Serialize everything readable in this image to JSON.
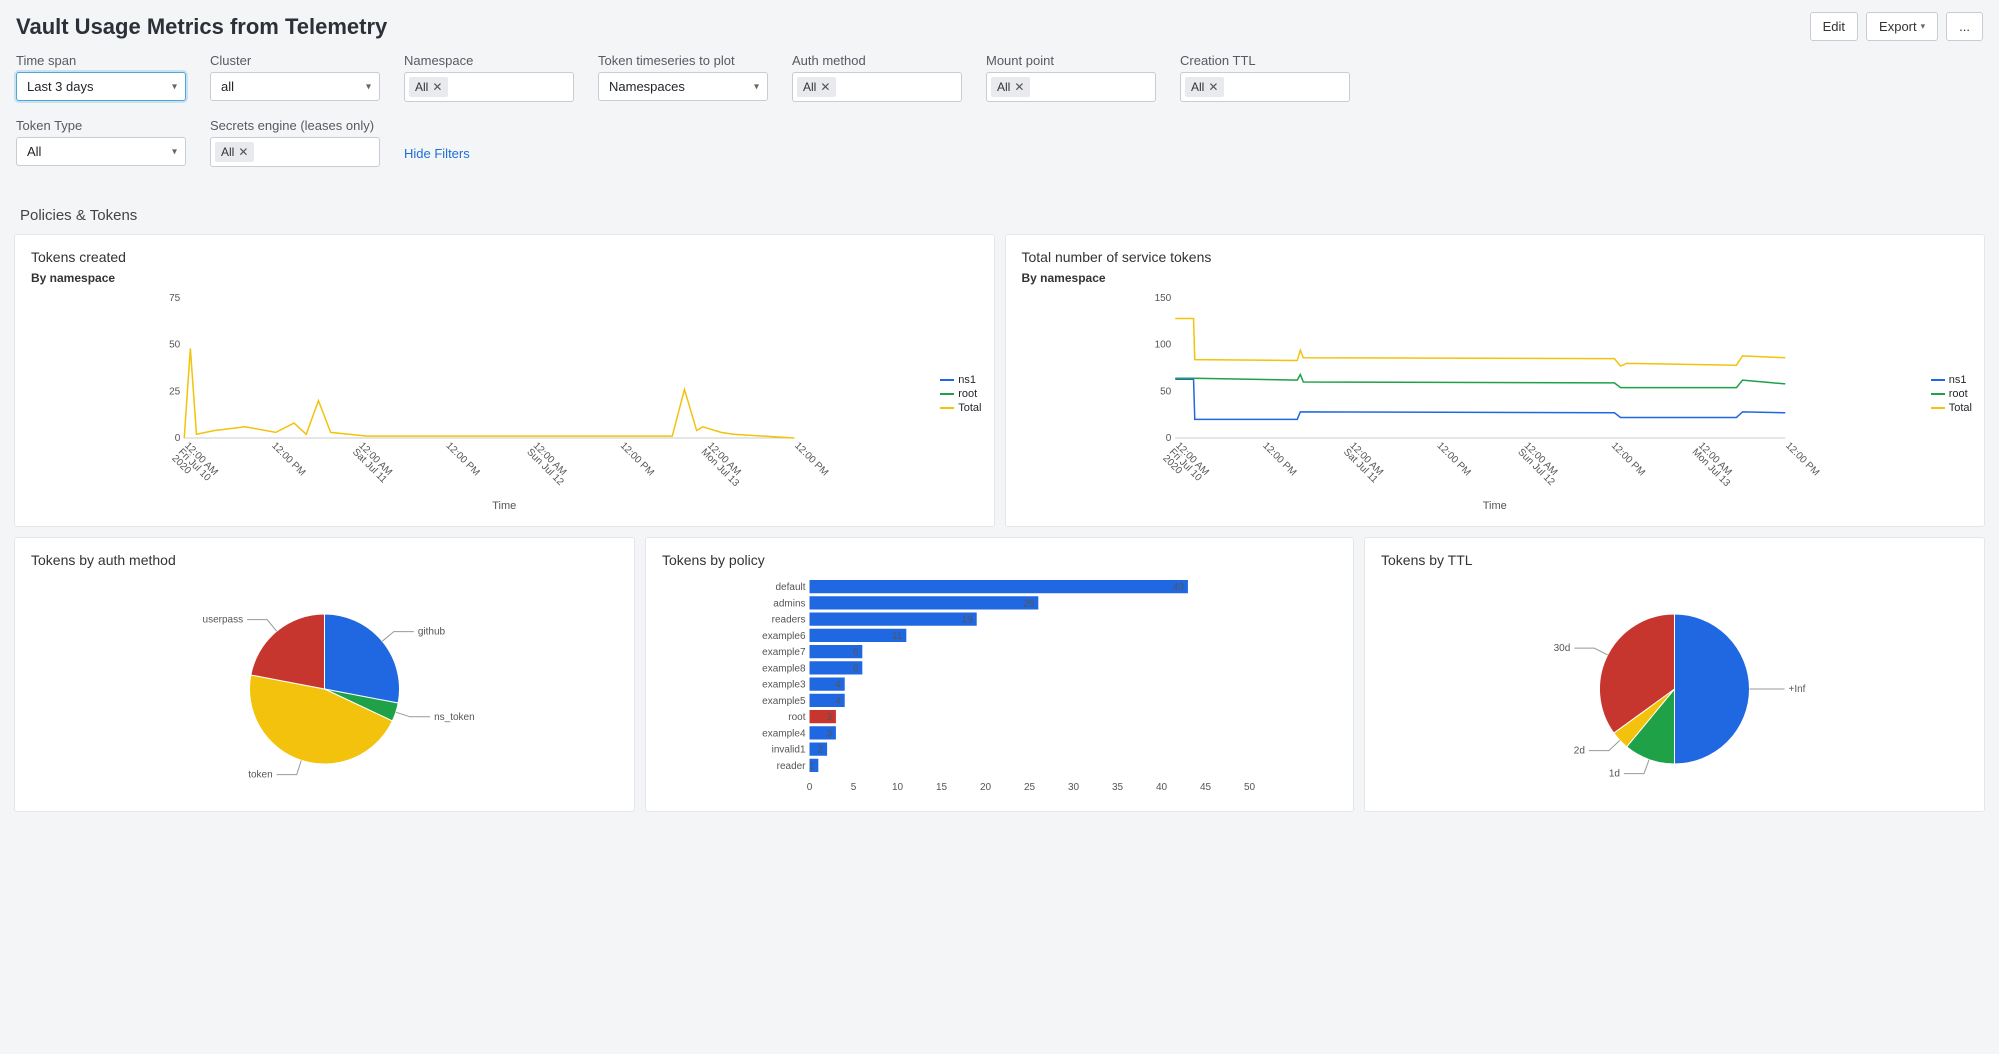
{
  "header": {
    "title": "Vault Usage Metrics from Telemetry",
    "edit": "Edit",
    "export": "Export",
    "more": "..."
  },
  "filters": {
    "timespan": {
      "label": "Time span",
      "value": "Last 3 days"
    },
    "cluster": {
      "label": "Cluster",
      "value": "all"
    },
    "namespace": {
      "label": "Namespace",
      "chip": "All"
    },
    "timeseries": {
      "label": "Token timeseries to plot",
      "value": "Namespaces"
    },
    "auth_method": {
      "label": "Auth method",
      "chip": "All"
    },
    "mount_point": {
      "label": "Mount point",
      "chip": "All"
    },
    "creation_ttl": {
      "label": "Creation TTL",
      "chip": "All"
    },
    "token_type": {
      "label": "Token Type",
      "value": "All"
    },
    "secrets_engine": {
      "label": "Secrets engine (leases only)",
      "chip": "All"
    },
    "hide_filters": "Hide Filters"
  },
  "section": {
    "policies_tokens": "Policies & Tokens"
  },
  "colors": {
    "blue": "#2067e2",
    "green": "#1fa148",
    "yellow": "#f2c20c",
    "red": "#c7362e",
    "grid": "#e6e8ec",
    "axis_text": "#666"
  },
  "chart1": {
    "title": "Tokens created",
    "subtitle": "By namespace",
    "y_ticks": [
      0,
      25,
      50,
      75
    ],
    "ymax": 75,
    "x_ticks": [
      "12:00 AM\nFri Jul 10\n2020",
      "12:00 PM",
      "12:00 AM\nSat Jul 11",
      "12:00 PM",
      "12:00 AM\nSun Jul 12",
      "12:00 PM",
      "12:00 AM\nMon Jul 13",
      "12:00 PM"
    ],
    "axis_label": "Time",
    "legend": [
      "ns1",
      "root",
      "Total"
    ],
    "legend_colors": [
      "#2067e2",
      "#1fa148",
      "#f2c20c"
    ],
    "total_series": [
      [
        0,
        0
      ],
      [
        1,
        48
      ],
      [
        2,
        2
      ],
      [
        5,
        4
      ],
      [
        10,
        6
      ],
      [
        15,
        3
      ],
      [
        18,
        8
      ],
      [
        20,
        2
      ],
      [
        22,
        20
      ],
      [
        24,
        3
      ],
      [
        30,
        1
      ],
      [
        40,
        1
      ],
      [
        50,
        1
      ],
      [
        60,
        1
      ],
      [
        70,
        1
      ],
      [
        80,
        1
      ],
      [
        82,
        26
      ],
      [
        84,
        4
      ],
      [
        85,
        6
      ],
      [
        88,
        3
      ],
      [
        90,
        2
      ],
      [
        100,
        0
      ]
    ]
  },
  "chart2": {
    "title": "Total number of service tokens",
    "subtitle": "By namespace",
    "y_ticks": [
      0,
      50,
      100,
      150
    ],
    "ymax": 150,
    "x_ticks": [
      "12:00 AM\nFri Jul 10\n2020",
      "12:00 PM",
      "12:00 AM\nSat Jul 11",
      "12:00 PM",
      "12:00 AM\nSun Jul 12",
      "12:00 PM",
      "12:00 AM\nMon Jul 13",
      "12:00 PM"
    ],
    "axis_label": "Time",
    "legend": [
      "ns1",
      "root",
      "Total"
    ],
    "legend_colors": [
      "#2067e2",
      "#1fa148",
      "#f2c20c"
    ],
    "ns1": [
      [
        0,
        63
      ],
      [
        3,
        63
      ],
      [
        3.2,
        20
      ],
      [
        20,
        20
      ],
      [
        20.5,
        28
      ],
      [
        72,
        27
      ],
      [
        73,
        22
      ],
      [
        92,
        22
      ],
      [
        93,
        28
      ],
      [
        100,
        27
      ]
    ],
    "root": [
      [
        0,
        64
      ],
      [
        3,
        64
      ],
      [
        20,
        62
      ],
      [
        20.5,
        68
      ],
      [
        21,
        60
      ],
      [
        72,
        59
      ],
      [
        73,
        54
      ],
      [
        92,
        54
      ],
      [
        93,
        62
      ],
      [
        100,
        58
      ]
    ],
    "total": [
      [
        0,
        128
      ],
      [
        3,
        128
      ],
      [
        3.2,
        84
      ],
      [
        20,
        83
      ],
      [
        20.5,
        94
      ],
      [
        21,
        86
      ],
      [
        72,
        85
      ],
      [
        73,
        77
      ],
      [
        74,
        80
      ],
      [
        92,
        78
      ],
      [
        93,
        88
      ],
      [
        100,
        86
      ]
    ]
  },
  "chart3": {
    "title": "Tokens by auth method",
    "slices": [
      {
        "label": "github",
        "value": 28,
        "color": "#2067e2"
      },
      {
        "label": "ns_token",
        "value": 4,
        "color": "#1fa148"
      },
      {
        "label": "token",
        "value": 46,
        "color": "#f2c20c"
      },
      {
        "label": "userpass",
        "value": 22,
        "color": "#c7362e"
      }
    ]
  },
  "chart4": {
    "title": "Tokens by policy",
    "xmax": 50,
    "x_ticks": [
      0,
      5,
      10,
      15,
      20,
      25,
      30,
      35,
      40,
      45,
      50
    ],
    "bars": [
      {
        "label": "default",
        "value": 43,
        "color": "#2067e2"
      },
      {
        "label": "admins",
        "value": 26,
        "color": "#2067e2"
      },
      {
        "label": "readers",
        "value": 19,
        "color": "#2067e2"
      },
      {
        "label": "example6",
        "value": 11,
        "color": "#2067e2"
      },
      {
        "label": "example7",
        "value": 6,
        "color": "#2067e2"
      },
      {
        "label": "example8",
        "value": 6,
        "color": "#2067e2"
      },
      {
        "label": "example3",
        "value": 4,
        "color": "#2067e2"
      },
      {
        "label": "example5",
        "value": 4,
        "color": "#2067e2"
      },
      {
        "label": "root",
        "value": 3,
        "color": "#c7362e"
      },
      {
        "label": "example4",
        "value": 3,
        "color": "#2067e2"
      },
      {
        "label": "invalid1",
        "value": 2,
        "color": "#2067e2"
      },
      {
        "label": "reader",
        "value": 1,
        "color": "#2067e2"
      }
    ]
  },
  "chart5": {
    "title": "Tokens by TTL",
    "slices": [
      {
        "label": "+Inf",
        "value": 50,
        "color": "#2067e2"
      },
      {
        "label": "1d",
        "value": 11,
        "color": "#1fa148"
      },
      {
        "label": "2d",
        "value": 4,
        "color": "#f2c20c"
      },
      {
        "label": "30d",
        "value": 35,
        "color": "#c7362e"
      }
    ]
  }
}
